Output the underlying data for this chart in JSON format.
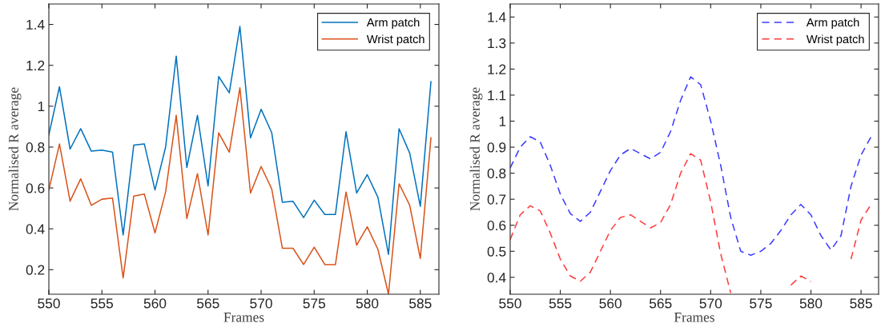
{
  "chart_data": [
    {
      "type": "line",
      "xlabel": "Frames",
      "ylabel": "Normalised R average",
      "line_style": "solid",
      "legend": "top right",
      "grid": false,
      "x": [
        550,
        551,
        552,
        553,
        554,
        555,
        556,
        557,
        558,
        559,
        560,
        561,
        562,
        563,
        564,
        565,
        566,
        567,
        568,
        569,
        570,
        571,
        572,
        573,
        574,
        575,
        576,
        577,
        578,
        579,
        580,
        581,
        582,
        583,
        584,
        585,
        586
      ],
      "series": [
        {
          "name": "Arm patch",
          "color": "#0072bd",
          "values": [
            0.86,
            1.095,
            0.79,
            0.89,
            0.78,
            0.785,
            0.775,
            0.37,
            0.81,
            0.815,
            0.59,
            0.8,
            1.245,
            0.7,
            0.955,
            0.61,
            1.145,
            1.065,
            1.39,
            0.845,
            0.985,
            0.87,
            0.53,
            0.535,
            0.455,
            0.54,
            0.47,
            0.47,
            0.875,
            0.575,
            0.665,
            0.555,
            0.275,
            0.89,
            0.77,
            0.51,
            1.12
          ]
        },
        {
          "name": "Wrist patch",
          "color": "#d95319",
          "values": [
            0.59,
            0.815,
            0.535,
            0.645,
            0.515,
            0.545,
            0.55,
            0.16,
            0.56,
            0.57,
            0.38,
            0.58,
            0.955,
            0.45,
            0.67,
            0.37,
            0.87,
            0.775,
            1.09,
            0.575,
            0.705,
            0.595,
            0.305,
            0.305,
            0.225,
            0.31,
            0.225,
            0.225,
            0.58,
            0.32,
            0.41,
            0.3,
            0.08,
            0.62,
            0.515,
            0.255,
            0.845
          ]
        }
      ],
      "xlim": [
        550,
        586.75
      ],
      "ylim": [
        0.08,
        1.5
      ],
      "xticks": [
        550,
        555,
        560,
        565,
        570,
        575,
        580,
        585
      ],
      "yticks": [
        0.2,
        0.4,
        0.6,
        0.8,
        1,
        1.2,
        1.4
      ]
    },
    {
      "type": "line",
      "xlabel": "Frames",
      "ylabel": "Normalised R average",
      "line_style": "dashed",
      "legend": "top right",
      "grid": false,
      "x": [
        550,
        551,
        552,
        553,
        554,
        555,
        556,
        557,
        558,
        559,
        560,
        561,
        562,
        563,
        564,
        565,
        566,
        567,
        568,
        569,
        570,
        571,
        572,
        573,
        574,
        575,
        576,
        577,
        578,
        579,
        580,
        581,
        582,
        583,
        584,
        585,
        586
      ],
      "series": [
        {
          "name": "Arm patch",
          "color": "#3b3bff",
          "values": [
            0.82,
            0.9,
            0.94,
            0.92,
            0.83,
            0.72,
            0.645,
            0.615,
            0.65,
            0.73,
            0.81,
            0.87,
            0.895,
            0.875,
            0.855,
            0.88,
            0.96,
            1.08,
            1.17,
            1.14,
            1.0,
            0.83,
            0.63,
            0.5,
            0.485,
            0.5,
            0.53,
            0.58,
            0.64,
            0.68,
            0.64,
            0.56,
            0.505,
            0.56,
            0.75,
            0.87,
            0.94
          ]
        },
        {
          "name": "Wrist patch",
          "color": "#ff3b3b",
          "values": [
            0.545,
            0.64,
            0.675,
            0.655,
            0.57,
            0.47,
            0.405,
            0.385,
            0.42,
            0.5,
            0.58,
            0.63,
            0.64,
            0.615,
            0.59,
            0.61,
            0.68,
            0.8,
            0.875,
            0.85,
            0.69,
            0.49,
            0.34,
            null,
            null,
            null,
            null,
            null,
            0.37,
            0.405,
            0.383,
            null,
            null,
            null,
            0.47,
            0.62,
            0.68
          ]
        }
      ],
      "xlim": [
        550,
        586.75
      ],
      "ylim": [
        0.335,
        1.45
      ],
      "xticks": [
        550,
        555,
        560,
        565,
        570,
        575,
        580,
        585
      ],
      "yticks": [
        0.4,
        0.5,
        0.6,
        0.7,
        0.8,
        0.9,
        1,
        1.1,
        1.2,
        1.3,
        1.4
      ]
    }
  ]
}
